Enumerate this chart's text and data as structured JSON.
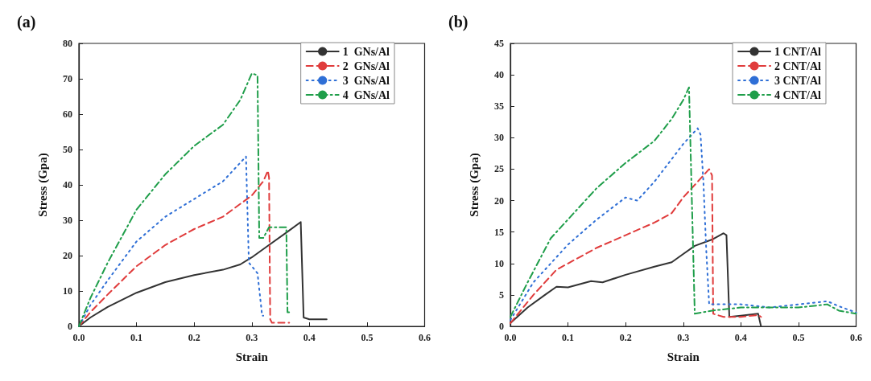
{
  "chart_data": [
    {
      "type": "line",
      "title": "(a)",
      "xlabel": "Strain",
      "ylabel": "Stress (Gpa)",
      "xlim": [
        0,
        0.6
      ],
      "ylim": [
        0,
        80
      ],
      "xticks": [
        {
          "value": 0,
          "label": "0.0"
        },
        0.1,
        0.2,
        0.3,
        0.4,
        0.5,
        0.6
      ],
      "yticks": [
        0,
        10,
        20,
        30,
        40,
        50,
        60,
        70,
        80
      ],
      "grid": false,
      "legend": "top right",
      "marker": "none",
      "series": [
        {
          "name": "1  GNs/Al",
          "color": "#333333",
          "line_style": "solid",
          "x": [
            0,
            0.02,
            0.05,
            0.1,
            0.15,
            0.2,
            0.25,
            0.28,
            0.3,
            0.33,
            0.36,
            0.385,
            0.39,
            0.4,
            0.43
          ],
          "values": [
            0,
            2.5,
            5.5,
            9.5,
            12.5,
            14.5,
            16,
            17.5,
            19.5,
            23,
            26.5,
            29.5,
            2.5,
            2,
            2
          ]
        },
        {
          "name": "2  GNs/Al",
          "color": "#e03c3c",
          "line_style": "dashed",
          "x": [
            0,
            0.02,
            0.05,
            0.1,
            0.15,
            0.2,
            0.25,
            0.3,
            0.32,
            0.328,
            0.33,
            0.332,
            0.335,
            0.365
          ],
          "values": [
            0,
            4,
            9,
            17,
            23,
            27.5,
            31,
            37,
            41,
            44,
            42,
            2,
            1,
            1
          ]
        },
        {
          "name": "3  GNs/Al",
          "color": "#2f6fd6",
          "line_style": "dotted",
          "x": [
            0,
            0.02,
            0.05,
            0.1,
            0.15,
            0.2,
            0.25,
            0.29,
            0.295,
            0.31,
            0.318,
            0.32
          ],
          "values": [
            0,
            6,
            13,
            24,
            31,
            36,
            41,
            48,
            18,
            15,
            3,
            3
          ]
        },
        {
          "name": "4  GNs/Al",
          "color": "#1f9e4a",
          "line_style": "dashdot",
          "x": [
            0,
            0.02,
            0.05,
            0.1,
            0.15,
            0.2,
            0.25,
            0.28,
            0.3,
            0.31,
            0.313,
            0.32,
            0.33,
            0.36,
            0.362,
            0.365
          ],
          "values": [
            0,
            8,
            18,
            33,
            43,
            51,
            57,
            64,
            71.5,
            71,
            25,
            25,
            28,
            28,
            4,
            4
          ]
        }
      ]
    },
    {
      "type": "line",
      "title": "(b)",
      "xlabel": "Strain",
      "ylabel": "Stress (Gpa)",
      "xlim": [
        0,
        0.6
      ],
      "ylim": [
        0,
        45
      ],
      "xticks": [
        {
          "value": 0,
          "label": "0.0"
        },
        0.1,
        0.2,
        0.3,
        0.4,
        0.5,
        0.6
      ],
      "yticks": [
        0,
        5,
        10,
        15,
        20,
        25,
        30,
        35,
        40,
        45
      ],
      "grid": false,
      "legend": "top right",
      "marker": "none",
      "series": [
        {
          "name": "1 CNT/Al",
          "color": "#333333",
          "line_style": "solid",
          "x": [
            0,
            0.03,
            0.06,
            0.08,
            0.1,
            0.14,
            0.16,
            0.2,
            0.25,
            0.28,
            0.3,
            0.32,
            0.35,
            0.37,
            0.375,
            0.38,
            0.4,
            0.43,
            0.435
          ],
          "values": [
            0.5,
            3,
            5,
            6.3,
            6.2,
            7.2,
            7,
            8.2,
            9.5,
            10.2,
            11.5,
            12.8,
            13.8,
            14.8,
            14.5,
            1.5,
            1.7,
            2,
            0
          ]
        },
        {
          "name": "2 CNT/Al",
          "color": "#e03c3c",
          "line_style": "dashed",
          "x": [
            0,
            0.04,
            0.08,
            0.1,
            0.15,
            0.2,
            0.25,
            0.28,
            0.3,
            0.33,
            0.345,
            0.35,
            0.352,
            0.37,
            0.4,
            0.43,
            0.435
          ],
          "values": [
            0.5,
            5,
            9,
            10,
            12.5,
            14.5,
            16.5,
            18,
            20.5,
            23.5,
            25,
            24,
            2,
            1.5,
            1.5,
            1.8,
            1.5
          ]
        },
        {
          "name": "3 CNT/Al",
          "color": "#2f6fd6",
          "line_style": "dotted",
          "x": [
            0,
            0.04,
            0.08,
            0.1,
            0.15,
            0.2,
            0.22,
            0.25,
            0.3,
            0.325,
            0.33,
            0.335,
            0.34,
            0.345,
            0.4,
            0.45,
            0.5,
            0.55,
            0.57,
            0.6
          ],
          "values": [
            1,
            7,
            11,
            13,
            17,
            20.5,
            20,
            23,
            29,
            31.5,
            30.5,
            23,
            12,
            3.5,
            3.5,
            3,
            3.5,
            4,
            3.2,
            2.2
          ]
        },
        {
          "name": "4 CNT/Al",
          "color": "#1f9e4a",
          "line_style": "dashdot",
          "x": [
            0,
            0.03,
            0.07,
            0.1,
            0.15,
            0.2,
            0.25,
            0.28,
            0.3,
            0.31,
            0.315,
            0.32,
            0.35,
            0.4,
            0.45,
            0.5,
            0.55,
            0.57,
            0.6
          ],
          "values": [
            1.5,
            7,
            14,
            17,
            22,
            26,
            29.5,
            33,
            36,
            38,
            20,
            2,
            2.5,
            3,
            3,
            3,
            3.5,
            2.5,
            2
          ]
        }
      ]
    }
  ]
}
